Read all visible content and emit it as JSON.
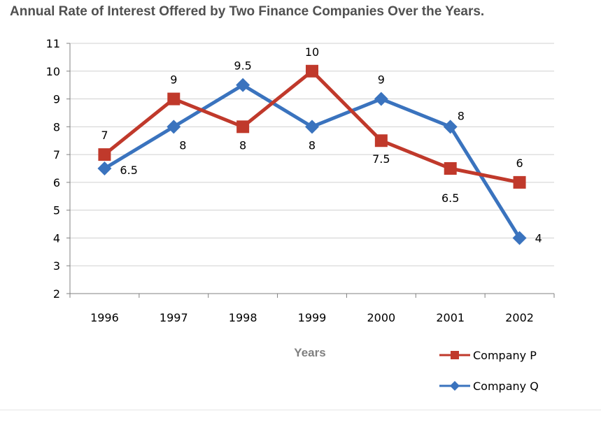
{
  "chart_data": {
    "type": "line",
    "title": "Annual Rate of Interest Offered by Two Finance Companies Over the Years.",
    "xlabel": "Years",
    "ylabel": "",
    "categories": [
      "1996",
      "1997",
      "1998",
      "1999",
      "2000",
      "2001",
      "2002"
    ],
    "ylim": [
      2,
      11
    ],
    "yticks": [
      2,
      3,
      4,
      5,
      6,
      7,
      8,
      9,
      10,
      11
    ],
    "grid": true,
    "legend_position": "bottom-right",
    "series": [
      {
        "name": "Company P",
        "values": [
          7,
          9,
          8,
          10,
          7.5,
          6.5,
          6
        ],
        "labels": [
          "7",
          "9",
          "8",
          "10",
          "7.5",
          "6.5",
          "6"
        ],
        "color": "#C0392B",
        "marker": "square"
      },
      {
        "name": "Company Q",
        "values": [
          6.5,
          8,
          9.5,
          8,
          9,
          8,
          4
        ],
        "labels": [
          "6.5",
          "8",
          "9.5",
          "8",
          "9",
          "8",
          "4"
        ],
        "color": "#3A73BE",
        "marker": "diamond"
      }
    ]
  }
}
